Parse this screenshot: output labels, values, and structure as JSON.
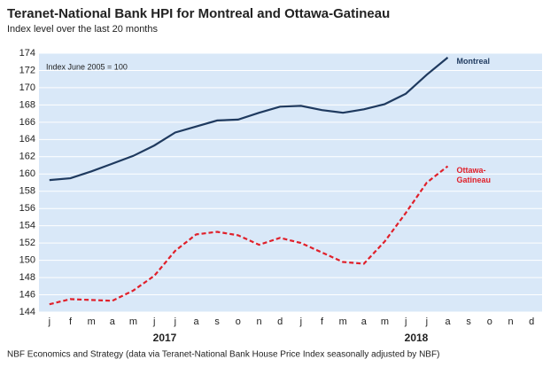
{
  "chart_data": {
    "type": "line",
    "title": "Teranet-National Bank HPI for Montreal and Ottawa-Gatineau",
    "subtitle": "Index level over the last 20 months",
    "annotation": "Index June 2005 = 100",
    "source": "NBF Economics and Strategy (data via Teranet-National Bank House Price Index seasonally adjusted by NBF)",
    "categories": [
      "j",
      "f",
      "m",
      "a",
      "m",
      "j",
      "j",
      "a",
      "s",
      "o",
      "n",
      "d",
      "j",
      "f",
      "m",
      "a",
      "m",
      "j",
      "j",
      "a",
      "s",
      "o",
      "n",
      "d"
    ],
    "year_labels": [
      "2017",
      "2018"
    ],
    "series": [
      {
        "name": "Montreal",
        "color": "#1f3a5f",
        "dashed": false,
        "values": [
          159.3,
          159.5,
          160.3,
          161.2,
          162.1,
          163.3,
          164.8,
          165.5,
          166.2,
          166.3,
          167.1,
          167.8,
          167.9,
          167.4,
          167.1,
          167.5,
          168.1,
          169.3,
          171.5,
          173.5,
          null,
          null,
          null,
          null
        ]
      },
      {
        "name": "Ottawa-Gatineau",
        "color": "#e0202a",
        "dashed": true,
        "values": [
          144.9,
          145.5,
          145.4,
          145.3,
          146.5,
          148.2,
          151.1,
          153.0,
          153.3,
          152.9,
          151.8,
          152.6,
          152.0,
          150.9,
          149.8,
          149.6,
          152.2,
          155.5,
          159.0,
          160.9,
          null,
          null,
          null,
          null
        ]
      }
    ],
    "ylim": [
      144,
      174
    ],
    "yticks": [
      144,
      146,
      148,
      150,
      152,
      154,
      156,
      158,
      160,
      162,
      164,
      166,
      168,
      170,
      172,
      174
    ],
    "grid": true
  }
}
